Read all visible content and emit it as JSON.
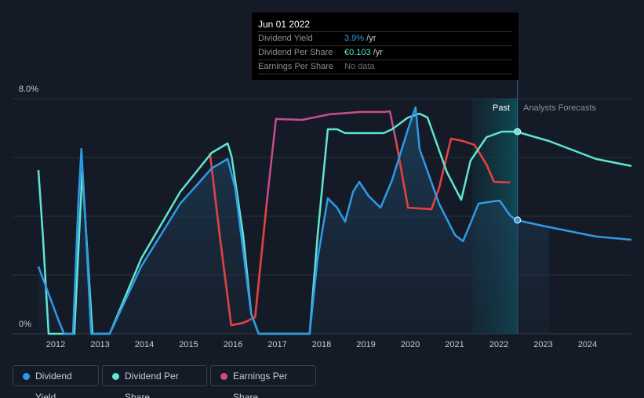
{
  "tooltip": {
    "date": "Jun 01 2022",
    "rows": [
      {
        "label": "Dividend Yield",
        "value": "3.9%",
        "unit": " /yr",
        "color": "#2e9ae6"
      },
      {
        "label": "Dividend Per Share",
        "value": "€0.103",
        "unit": " /yr",
        "color": "#5ee6d0"
      },
      {
        "label": "Earnings Per Share",
        "value": "No data",
        "unit": "",
        "color": "#6b7079"
      }
    ]
  },
  "regions": {
    "past": "Past",
    "forecast": "Analysts Forecasts"
  },
  "legend": [
    {
      "label": "Dividend Yield",
      "color": "#2e9ae6"
    },
    {
      "label": "Dividend Per Share",
      "color": "#5ee6d0"
    },
    {
      "label": "Earnings Per Share",
      "color": "#c94c8e"
    }
  ],
  "chart_data": {
    "type": "line",
    "ylim": [
      0,
      8
    ],
    "xlim": [
      2011.6,
      2025
    ],
    "y_ticks": [
      "0%",
      "8.0%"
    ],
    "x_ticks": [
      "2012",
      "2013",
      "2014",
      "2015",
      "2016",
      "2017",
      "2018",
      "2019",
      "2020",
      "2021",
      "2022",
      "2023",
      "2024"
    ],
    "past_start": 2021.4,
    "now": 2022.42,
    "series": [
      {
        "name": "Dividend Yield",
        "color": "#2e9ae6",
        "x": [
          2011.61,
          2012.07,
          2012.19,
          2012.39,
          2012.51,
          2012.58,
          2012.65,
          2012.8,
          2013.22,
          2013.93,
          2014.81,
          2015.52,
          2015.88,
          2016.05,
          2016.41,
          2016.58,
          2017.73,
          2017.91,
          2018.14,
          2018.35,
          2018.53,
          2018.71,
          2018.85,
          2019.06,
          2019.33,
          2019.59,
          2019.95,
          2020.12,
          2020.21,
          2020.65,
          2021.01,
          2021.19,
          2021.36,
          2021.54,
          2021.89,
          2022.02,
          2022.25,
          2022.39,
          2023.13,
          2024.19,
          2024.99
        ],
        "y": [
          2.29,
          0.43,
          0,
          0,
          4.43,
          6.29,
          4.43,
          0,
          0,
          2.29,
          4.43,
          5.63,
          5.95,
          4.96,
          0.69,
          0,
          0,
          2.56,
          4.61,
          4.29,
          3.81,
          4.83,
          5.17,
          4.69,
          4.29,
          5.23,
          6.96,
          7.71,
          6.29,
          4.43,
          3.36,
          3.15,
          3.76,
          4.43,
          4.51,
          4.53,
          4.03,
          3.87,
          3.63,
          3.31,
          3.2
        ]
      },
      {
        "name": "Dividend Per Share",
        "color": "#5ee6d0",
        "x": [
          2011.61,
          2011.71,
          2011.84,
          2012.13,
          2012.42,
          2012.6,
          2012.69,
          2012.83,
          2013.22,
          2013.93,
          2014.81,
          2015.52,
          2015.88,
          2015.97,
          2016.23,
          2016.41,
          2016.58,
          2017.73,
          2017.91,
          2018.14,
          2018.35,
          2018.53,
          2019.4,
          2019.59,
          2019.95,
          2020.21,
          2020.39,
          2020.83,
          2021.15,
          2021.36,
          2021.72,
          2022.07,
          2022.39,
          2023.13,
          2024.19,
          2024.99
        ],
        "y": [
          5.57,
          3.36,
          0,
          0,
          0,
          5.55,
          3.36,
          0,
          0,
          2.56,
          4.83,
          6.16,
          6.48,
          6.03,
          3.36,
          0.69,
          0,
          0,
          3.36,
          6.96,
          6.96,
          6.83,
          6.83,
          6.96,
          7.36,
          7.49,
          7.36,
          5.49,
          4.56,
          5.89,
          6.69,
          6.88,
          6.88,
          6.56,
          5.95,
          5.71
        ]
      },
      {
        "name": "Earnings Per Share",
        "color": "#c94c8e",
        "low_color": "#e0413f",
        "x": [
          2015.48,
          2015.7,
          2015.96,
          2016.23,
          2016.5,
          2016.76,
          2016.97,
          2017.56,
          2018.18,
          2018.88,
          2019.41,
          2019.54,
          2019.68,
          2019.95,
          2020.48,
          2020.65,
          2020.92,
          2021.19,
          2021.45,
          2021.72,
          2021.89,
          2022.25
        ],
        "y": [
          6.16,
          3.36,
          0.29,
          0.37,
          0.56,
          4.43,
          7.31,
          7.28,
          7.47,
          7.55,
          7.55,
          7.57,
          6.56,
          4.29,
          4.24,
          4.96,
          6.64,
          6.56,
          6.43,
          5.76,
          5.17,
          5.15
        ],
        "low_ranges": [
          [
            0,
            5
          ],
          [
            12,
            21
          ]
        ]
      }
    ]
  }
}
